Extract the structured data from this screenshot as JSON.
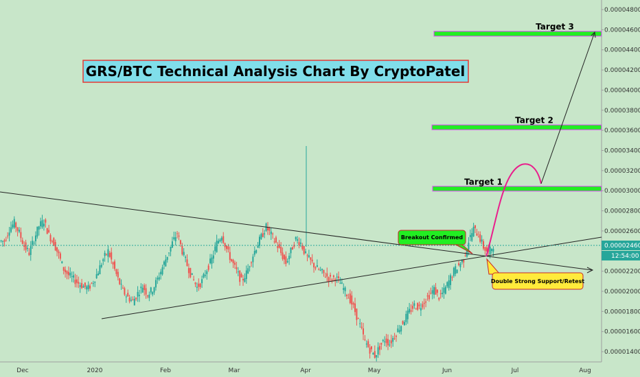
{
  "chart_data": {
    "type": "candlestick",
    "title": "GRS/BTC Technical Analysis Chart By CryptoPatel",
    "y_axis": {
      "ticks": [
        "0.00004800",
        "0.00004600",
        "0.00004400",
        "0.00004200",
        "0.00004000",
        "0.00003800",
        "0.00003600",
        "0.00003400",
        "0.00003200",
        "0.00003000",
        "0.00002800",
        "0.00002600",
        "0.00002200",
        "0.00002000",
        "0.00001800",
        "0.00001600",
        "0.00001400"
      ],
      "range": [
        1.33e-05,
        4.85e-05
      ]
    },
    "x_axis": {
      "ticks": [
        "Dec",
        "2020",
        "Feb",
        "Mar",
        "Apr",
        "May",
        "Jun",
        "Jul",
        "Aug"
      ]
    },
    "current_price": {
      "value": "0.00002460",
      "countdown": "12:54:00"
    },
    "targets": [
      {
        "label": "Target 1",
        "price": 3.02e-05
      },
      {
        "label": "Target 2",
        "price": 3.63e-05
      },
      {
        "label": "Target 3",
        "price": 4.56e-05
      }
    ],
    "annotations": {
      "breakout": "Breakout Confirmed",
      "support": "Double Strong Support/Retest"
    },
    "price_series_approx": [
      2.5e-05,
      2.62e-05,
      2.68e-05,
      2.58e-05,
      2.45e-05,
      2.38e-05,
      2.52e-05,
      2.65e-05,
      2.7e-05,
      2.56e-05,
      2.48e-05,
      2.36e-05,
      2.22e-05,
      2.16e-05,
      2.12e-05,
      2.08e-05,
      2.05e-05,
      2.03e-05,
      2.1e-05,
      2.2e-05,
      2.32e-05,
      2.4e-05,
      2.26e-05,
      2.12e-05,
      2e-05,
      1.94e-05,
      1.9e-05,
      1.98e-05,
      2.05e-05,
      1.97e-05,
      2.02e-05,
      2.12e-05,
      2.24e-05,
      2.36e-05,
      2.48e-05,
      2.58e-05,
      2.4e-05,
      2.26e-05,
      2.14e-05,
      2.04e-05,
      2.1e-05,
      2.22e-05,
      2.32e-05,
      2.48e-05,
      2.56e-05,
      2.42e-05,
      2.3e-05,
      2.2e-05,
      2.1e-05,
      2.18e-05,
      2.32e-05,
      2.44e-05,
      2.54e-05,
      2.64e-05,
      2.56e-05,
      2.48e-05,
      2.38e-05,
      2.28e-05,
      2.4e-05,
      2.52e-05,
      2.48e-05,
      2.36e-05,
      2.3e-05,
      2.24e-05,
      2.2e-05,
      2.16e-05,
      2.12e-05,
      2.14e-05,
      2.08e-05,
      2e-05,
      1.92e-05,
      1.8e-05,
      1.66e-05,
      1.5e-05,
      1.42e-05,
      1.36e-05,
      1.45e-05,
      1.52e-05,
      1.48e-05,
      1.56e-05,
      1.64e-05,
      1.72e-05,
      1.8e-05,
      1.86e-05,
      1.84e-05,
      1.9e-05,
      1.96e-05,
      2.02e-05,
      1.94e-05,
      2e-05,
      2.1e-05,
      2.2e-05,
      2.26e-05,
      2.32e-05,
      2.5e-05,
      2.62e-05,
      2.56e-05,
      2.44e-05,
      2.38e-05,
      2.46e-05
    ]
  },
  "colors": {
    "background": "#c8e6c9",
    "candle_up": "#26a69a",
    "candle_down": "#ef5350",
    "target_bar": "#22ee22",
    "target_border": "#e040fb",
    "title_box": "#80deea",
    "title_border": "#e53935",
    "breakout_box": "#22ee22",
    "support_box": "#ffeb3b",
    "projection": "#e91e8c",
    "price_tag": "#26a69a"
  }
}
